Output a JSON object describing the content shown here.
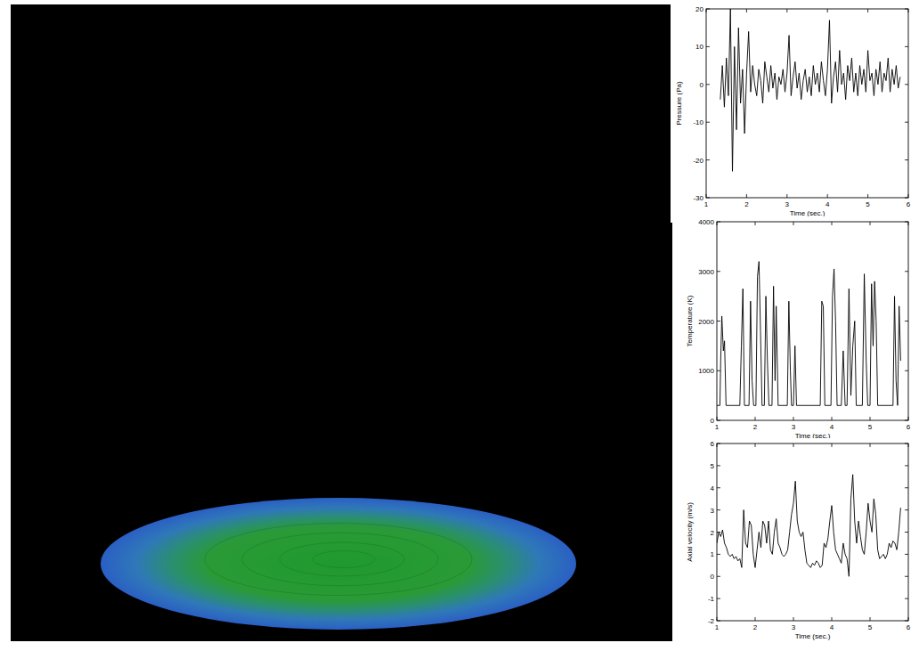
{
  "chart_data": [
    {
      "type": "line",
      "x_label": "Time (sec.)",
      "y_label": "Pressure (Pa)",
      "color": "#000000",
      "xlim": [
        1,
        6
      ],
      "xticks": [
        1,
        2,
        3,
        4,
        5,
        6
      ],
      "ylim": [
        -30,
        20
      ],
      "yticks": [
        -30,
        -20,
        -10,
        0,
        10,
        20
      ],
      "x": [
        1.35,
        1.4,
        1.45,
        1.5,
        1.55,
        1.6,
        1.65,
        1.7,
        1.75,
        1.8,
        1.85,
        1.9,
        1.95,
        2.0,
        2.05,
        2.1,
        2.15,
        2.2,
        2.25,
        2.3,
        2.35,
        2.4,
        2.45,
        2.5,
        2.55,
        2.6,
        2.65,
        2.7,
        2.75,
        2.8,
        2.85,
        2.9,
        2.95,
        3.0,
        3.05,
        3.1,
        3.15,
        3.2,
        3.25,
        3.3,
        3.35,
        3.4,
        3.45,
        3.5,
        3.55,
        3.6,
        3.65,
        3.7,
        3.75,
        3.8,
        3.85,
        3.9,
        3.95,
        4.0,
        4.05,
        4.1,
        4.15,
        4.2,
        4.25,
        4.3,
        4.35,
        4.4,
        4.45,
        4.5,
        4.55,
        4.6,
        4.65,
        4.7,
        4.75,
        4.8,
        4.85,
        4.9,
        4.95,
        5.0,
        5.05,
        5.1,
        5.15,
        5.2,
        5.25,
        5.3,
        5.35,
        5.4,
        5.45,
        5.5,
        5.55,
        5.6,
        5.65,
        5.7,
        5.75,
        5.8
      ],
      "values": [
        -4,
        5,
        -6,
        7,
        -3,
        20,
        -23,
        10,
        -12,
        15,
        -5,
        4,
        -13,
        3,
        14,
        -2,
        5,
        0,
        -3,
        4,
        1,
        -5,
        6,
        2,
        -2,
        5,
        -1,
        3,
        -4,
        2,
        0,
        4,
        -2,
        3,
        13,
        -3,
        2,
        6,
        -1,
        3,
        -4,
        1,
        4,
        -2,
        2,
        -3,
        5,
        0,
        3,
        -2,
        6,
        1,
        -3,
        4,
        17,
        -5,
        2,
        6,
        -2,
        9,
        0,
        3,
        -4,
        5,
        1,
        7,
        -2,
        3,
        -3,
        5,
        0,
        4,
        -2,
        9,
        1,
        3,
        -3,
        4,
        0,
        6,
        -2,
        3,
        1,
        7,
        -2,
        4,
        0,
        5,
        -1,
        2
      ]
    },
    {
      "type": "line",
      "x_label": "Time (sec.)",
      "y_label": "Temperature (K)",
      "color": "#000000",
      "xlim": [
        1,
        6
      ],
      "xticks": [
        1,
        2,
        3,
        4,
        5,
        6
      ],
      "ylim": [
        0,
        4000
      ],
      "yticks": [
        0,
        1000,
        2000,
        3000,
        4000
      ],
      "x": [
        1.0,
        1.08,
        1.1,
        1.13,
        1.17,
        1.2,
        1.24,
        1.6,
        1.64,
        1.68,
        1.72,
        1.84,
        1.88,
        1.92,
        1.96,
        2.02,
        2.06,
        2.1,
        2.14,
        2.18,
        2.24,
        2.28,
        2.32,
        2.36,
        2.44,
        2.48,
        2.52,
        2.55,
        2.6,
        2.84,
        2.88,
        2.92,
        2.95,
        3.0,
        3.04,
        3.08,
        3.7,
        3.74,
        3.78,
        3.82,
        3.98,
        4.02,
        4.06,
        4.1,
        4.14,
        4.25,
        4.3,
        4.35,
        4.4,
        4.45,
        4.5,
        4.55,
        4.6,
        4.64,
        4.8,
        4.85,
        4.9,
        4.94,
        5.0,
        5.04,
        5.08,
        5.12,
        5.16,
        5.2,
        5.6,
        5.64,
        5.68,
        5.72,
        5.76,
        5.8
      ],
      "values": [
        300,
        300,
        1200,
        2100,
        1400,
        1600,
        300,
        300,
        1500,
        2650,
        300,
        300,
        2400,
        800,
        300,
        300,
        2900,
        3200,
        1800,
        300,
        300,
        2500,
        1200,
        300,
        300,
        2700,
        800,
        2300,
        300,
        300,
        2400,
        1000,
        300,
        300,
        1500,
        300,
        300,
        2400,
        2300,
        300,
        300,
        2500,
        3050,
        2000,
        300,
        300,
        1400,
        300,
        300,
        2650,
        500,
        1500,
        2000,
        300,
        300,
        2950,
        1200,
        300,
        300,
        2750,
        1500,
        2800,
        2000,
        300,
        300,
        2500,
        800,
        300,
        2300,
        1200
      ]
    },
    {
      "type": "line",
      "x_label": "Time (sec.)",
      "y_label": "Axial velocity (m/s)",
      "color": "#000000",
      "xlim": [
        1,
        6
      ],
      "xticks": [
        1,
        2,
        3,
        4,
        5,
        6
      ],
      "ylim": [
        -2,
        6
      ],
      "yticks": [
        -2,
        -1,
        0,
        1,
        2,
        3,
        4,
        5,
        6
      ],
      "x": [
        1.0,
        1.05,
        1.1,
        1.15,
        1.2,
        1.25,
        1.3,
        1.35,
        1.4,
        1.45,
        1.5,
        1.55,
        1.6,
        1.65,
        1.7,
        1.75,
        1.8,
        1.85,
        1.9,
        1.95,
        2.0,
        2.05,
        2.1,
        2.15,
        2.2,
        2.25,
        2.3,
        2.35,
        2.4,
        2.45,
        2.5,
        2.55,
        2.6,
        2.65,
        2.7,
        2.75,
        2.8,
        2.85,
        2.9,
        2.95,
        3.0,
        3.05,
        3.1,
        3.15,
        3.2,
        3.25,
        3.3,
        3.35,
        3.4,
        3.45,
        3.5,
        3.55,
        3.6,
        3.65,
        3.7,
        3.75,
        3.8,
        3.85,
        3.9,
        3.95,
        4.0,
        4.05,
        4.1,
        4.15,
        4.2,
        4.25,
        4.3,
        4.35,
        4.4,
        4.45,
        4.5,
        4.55,
        4.6,
        4.65,
        4.7,
        4.75,
        4.8,
        4.85,
        4.9,
        4.95,
        5.0,
        5.05,
        5.1,
        5.15,
        5.2,
        5.25,
        5.3,
        5.35,
        5.4,
        5.45,
        5.5,
        5.55,
        5.6,
        5.65,
        5.7,
        5.75,
        5.8
      ],
      "values": [
        1.5,
        2.0,
        1.8,
        2.1,
        1.5,
        1.3,
        1.0,
        0.9,
        1.0,
        0.8,
        0.9,
        0.7,
        0.8,
        0.4,
        3.0,
        1.5,
        1.3,
        2.5,
        2.3,
        1.0,
        0.4,
        1.2,
        2.0,
        1.3,
        2.5,
        2.3,
        1.5,
        2.5,
        1.2,
        1.0,
        2.0,
        2.6,
        1.5,
        1.3,
        1.0,
        0.9,
        1.0,
        1.2,
        2.0,
        2.8,
        3.3,
        4.3,
        2.5,
        2.0,
        1.8,
        2.0,
        1.2,
        0.6,
        0.5,
        0.4,
        0.6,
        0.5,
        0.7,
        0.6,
        0.4,
        0.5,
        1.5,
        1.3,
        1.7,
        2.5,
        3.2,
        2.0,
        1.2,
        1.0,
        0.8,
        0.6,
        1.5,
        1.0,
        0.8,
        0.0,
        3.5,
        4.6,
        2.5,
        1.5,
        2.5,
        1.8,
        1.2,
        1.0,
        2.0,
        3.3,
        2.5,
        2.0,
        3.5,
        2.8,
        1.2,
        0.8,
        0.9,
        1.0,
        0.8,
        1.0,
        1.5,
        1.3,
        1.6,
        1.5,
        1.2,
        2.0,
        3.1
      ]
    }
  ]
}
